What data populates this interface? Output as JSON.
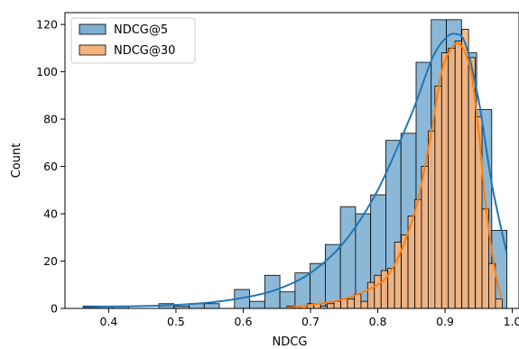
{
  "chart_data": {
    "type": "histogram",
    "xlabel": "NDCG",
    "ylabel": "Count",
    "xlim": [
      0.335,
      1.01
    ],
    "ylim": [
      0,
      125
    ],
    "x_ticks": [
      "0.4",
      "0.5",
      "0.6",
      "0.7",
      "0.8",
      "0.9",
      "1.0"
    ],
    "y_ticks": [
      "0",
      "20",
      "40",
      "60",
      "80",
      "100",
      "120"
    ],
    "legend_position": "top-left",
    "colors": {
      "ndcg5_fill": "#7fb0d4",
      "ndcg5_line": "#1f77b4",
      "ndcg30_fill": "#f7b27c",
      "ndcg30_line": "#ff7f0e"
    },
    "series": [
      {
        "name": "NDCG@5",
        "bin_edges": [
          0.362,
          0.3845,
          0.407,
          0.4295,
          0.452,
          0.4745,
          0.497,
          0.5195,
          0.542,
          0.5645,
          0.587,
          0.6095,
          0.632,
          0.6545,
          0.677,
          0.6995,
          0.722,
          0.7445,
          0.767,
          0.7895,
          0.812,
          0.8345,
          0.857,
          0.8795,
          0.902,
          0.9245,
          0.947,
          0.9695,
          0.992
        ],
        "counts": [
          1,
          1,
          1,
          0,
          0,
          2,
          1,
          2,
          2,
          0,
          8,
          3,
          14,
          7,
          15,
          19,
          27,
          43,
          40,
          48,
          71,
          74,
          104,
          122,
          122,
          108,
          84,
          33
        ]
      },
      {
        "name": "NDCG@30",
        "bin_edges": [
          0.665,
          0.675,
          0.685,
          0.695,
          0.705,
          0.715,
          0.725,
          0.735,
          0.745,
          0.755,
          0.765,
          0.775,
          0.785,
          0.795,
          0.805,
          0.815,
          0.825,
          0.835,
          0.845,
          0.855,
          0.865,
          0.875,
          0.885,
          0.895,
          0.905,
          0.915,
          0.925,
          0.935,
          0.945,
          0.955,
          0.965,
          0.975,
          0.985
        ],
        "counts": [
          1,
          0,
          1,
          2,
          2,
          1,
          2,
          3,
          4,
          4,
          6,
          3,
          11,
          14,
          16,
          17,
          28,
          31,
          39,
          46,
          60,
          75,
          94,
          108,
          110,
          113,
          118,
          106,
          81,
          42,
          19,
          4
        ]
      }
    ],
    "kde": [
      {
        "name": "NDCG@5",
        "x": [
          0.362,
          0.4,
          0.45,
          0.5,
          0.55,
          0.6,
          0.65,
          0.7,
          0.75,
          0.8,
          0.85,
          0.88,
          0.9,
          0.915,
          0.93,
          0.95,
          0.97,
          0.992
        ],
        "y": [
          0.5,
          0.8,
          1,
          1.5,
          2.5,
          4.5,
          8,
          15,
          28,
          50,
          82,
          105,
          114,
          116,
          112,
          88,
          52,
          23
        ]
      },
      {
        "name": "NDCG@30",
        "x": [
          0.665,
          0.7,
          0.75,
          0.8,
          0.82,
          0.84,
          0.86,
          0.88,
          0.895,
          0.91,
          0.92,
          0.93,
          0.94,
          0.95,
          0.96,
          0.975,
          0.985
        ],
        "y": [
          0.3,
          1.5,
          4,
          10,
          16,
          28,
          46,
          75,
          100,
          110,
          112,
          108,
          98,
          75,
          45,
          15,
          4
        ]
      }
    ]
  }
}
